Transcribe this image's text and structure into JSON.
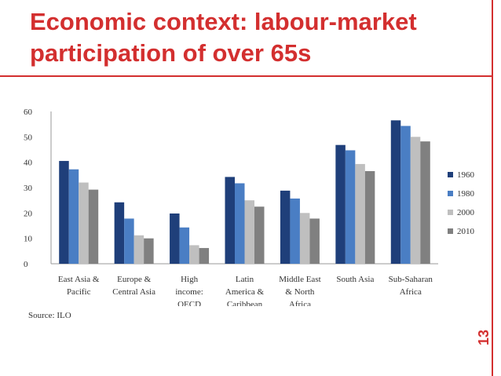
{
  "slide": {
    "title": "Economic context: labour-market participation of over 65s",
    "source": "Source: ILO",
    "page_number": "13",
    "accent_color": "#d32f2f"
  },
  "chart_data": {
    "type": "bar",
    "title": "",
    "xlabel": "",
    "ylabel": "",
    "ylim": [
      0,
      60
    ],
    "yticks": [
      0,
      10,
      20,
      30,
      40,
      50,
      60
    ],
    "grid": false,
    "legend_position": "right",
    "categories": [
      [
        "East Asia &",
        "Pacific"
      ],
      [
        "Europe &",
        "Central Asia"
      ],
      [
        "High",
        "income:",
        "OECD"
      ],
      [
        "Latin",
        "America &",
        "Caribbean"
      ],
      [
        "Middle East",
        "& North",
        "Africa"
      ],
      [
        "South Asia"
      ],
      [
        "Sub-Saharan",
        "Africa"
      ]
    ],
    "series": [
      {
        "name": "1960",
        "color": "#1f3f7a",
        "values": [
          40.5,
          24.2,
          19.8,
          34.2,
          28.8,
          46.8,
          56.5
        ]
      },
      {
        "name": "1980",
        "color": "#4a7ec4",
        "values": [
          37.2,
          17.8,
          14.3,
          31.7,
          25.7,
          44.7,
          54.3
        ]
      },
      {
        "name": "2000",
        "color": "#bfbfbf",
        "values": [
          32.0,
          11.2,
          7.3,
          25.0,
          20.0,
          39.3,
          50.0
        ]
      },
      {
        "name": "2010",
        "color": "#808080",
        "values": [
          29.2,
          10.0,
          6.2,
          22.5,
          17.8,
          36.5,
          48.2
        ]
      }
    ]
  }
}
